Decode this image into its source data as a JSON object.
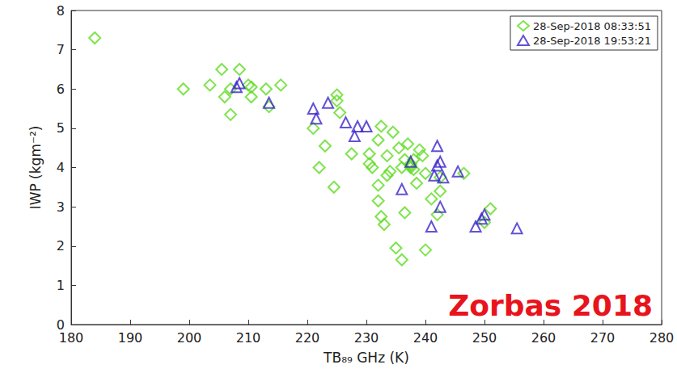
{
  "chart_data": {
    "type": "scatter",
    "x_label": "TB₈₉ GHz (K)",
    "y_label": "IWP (kgm⁻²)",
    "xlim": [
      180,
      280
    ],
    "xticks": [
      180,
      190,
      200,
      210,
      220,
      230,
      240,
      250,
      260,
      270,
      280
    ],
    "ylim": [
      0,
      8
    ],
    "yticks": [
      0,
      1,
      2,
      3,
      4,
      5,
      6,
      7,
      8
    ],
    "grid": false,
    "legend": "upper right",
    "annotations": [
      {
        "text": "Zorbas 2018",
        "color": "#e8141c"
      }
    ],
    "series": [
      {
        "name": "28-Sep-2018 08:33:51",
        "color": "#5fdc22",
        "marker": "diamond",
        "x": [
          184,
          199,
          203.5,
          205.5,
          206,
          207,
          207,
          208.5,
          210,
          210.5,
          210.5,
          213,
          213.5,
          215.5,
          221,
          222,
          223,
          224.5,
          225,
          225,
          225.5,
          227.5,
          230.5,
          230.5,
          231,
          232,
          232,
          232,
          232.5,
          232.5,
          233,
          233.5,
          233.5,
          234,
          234.5,
          235,
          235.5,
          236,
          236.5,
          236,
          237,
          237.5,
          237.5,
          238,
          238,
          238.5,
          239,
          239.5,
          240,
          240,
          241,
          242,
          242.5,
          242.5,
          246.5,
          250,
          251,
          236.5,
          237.5
        ],
        "values": [
          7.3,
          6.0,
          6.1,
          6.5,
          5.8,
          5.35,
          6.0,
          6.5,
          6.1,
          5.8,
          6.05,
          6.0,
          5.55,
          6.1,
          5.0,
          4.0,
          4.55,
          3.5,
          5.85,
          5.7,
          5.4,
          4.35,
          4.1,
          4.35,
          4.0,
          4.7,
          3.55,
          3.15,
          2.75,
          5.05,
          2.55,
          3.8,
          4.3,
          3.9,
          4.9,
          1.95,
          4.5,
          1.65,
          2.85,
          4.0,
          4.6,
          4.1,
          4.0,
          3.95,
          4.2,
          3.6,
          4.45,
          4.3,
          1.9,
          3.85,
          3.2,
          2.8,
          3.75,
          3.4,
          3.85,
          2.6,
          2.95,
          4.2,
          4.05
        ]
      },
      {
        "name": "28-Sep-2018 19:53:21",
        "color": "#3b25cc",
        "marker": "triangle",
        "x": [
          208,
          208.5,
          213.5,
          221,
          221.5,
          223.5,
          226.5,
          228,
          228.5,
          230,
          236,
          237.5,
          241,
          241.5,
          242,
          242,
          242.5,
          242.5,
          243,
          245.5,
          248.5,
          249.5,
          250,
          255.5
        ],
        "values": [
          6.05,
          6.15,
          5.65,
          5.5,
          5.25,
          5.65,
          5.15,
          4.8,
          5.05,
          5.05,
          3.45,
          4.15,
          2.5,
          3.8,
          4.55,
          4.05,
          3.0,
          4.15,
          3.75,
          3.9,
          2.5,
          2.7,
          2.8,
          2.45
        ]
      }
    ]
  }
}
